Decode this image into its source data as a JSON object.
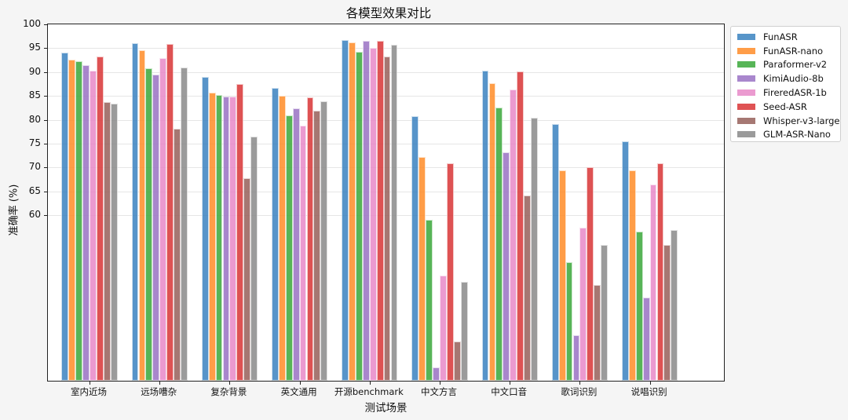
{
  "chart_data": {
    "type": "bar",
    "title": "各模型效果对比",
    "xlabel": "测试场景",
    "ylabel": "准确率 (%)",
    "ylim": [
      25,
      100
    ],
    "yticks": [
      60,
      65,
      70,
      75,
      80,
      85,
      90,
      95,
      100
    ],
    "grid": true,
    "legend_position": "upper right (outside)",
    "categories": [
      "室内近场",
      "远场嘈杂",
      "复杂背景",
      "英文通用",
      "开源benchmark",
      "中文方言",
      "中文口音",
      "歌词识别",
      "说唱识别"
    ],
    "series": [
      {
        "name": "FunASR",
        "color": "#3a82c0",
        "values": [
          93.8,
          95.7,
          88.6,
          86.3,
          96.4,
          80.4,
          90.0,
          78.8,
          75.1
        ]
      },
      {
        "name": "FunASR-nano",
        "color": "#ff8c28",
        "values": [
          92.3,
          94.3,
          85.4,
          84.7,
          95.9,
          71.8,
          87.3,
          69.1,
          69.1
        ]
      },
      {
        "name": "Paraformer-v2",
        "color": "#3aa83a",
        "values": [
          91.9,
          90.5,
          84.9,
          80.6,
          93.9,
          58.8,
          82.2,
          49.8,
          56.2
        ]
      },
      {
        "name": "KimiAudio-8b",
        "color": "#9a72c4",
        "values": [
          91.1,
          89.1,
          84.5,
          82.0,
          96.2,
          27.8,
          72.8,
          34.6,
          42.4
        ]
      },
      {
        "name": "FireredASR-1b",
        "color": "#e889c8",
        "values": [
          90.0,
          92.6,
          84.5,
          78.4,
          94.8,
          47.1,
          86.0,
          57.0,
          66.1
        ]
      },
      {
        "name": "Seed-ASR",
        "color": "#d93536",
        "values": [
          92.9,
          95.5,
          87.2,
          84.4,
          96.2,
          70.5,
          89.8,
          69.7,
          70.5
        ]
      },
      {
        "name": "Whisper-v3-large",
        "color": "#97605a",
        "values": [
          83.4,
          77.8,
          67.5,
          81.5,
          93.0,
          33.3,
          63.9,
          45.1,
          53.4
        ]
      },
      {
        "name": "GLM-ASR-Nano",
        "color": "#8a8a8a",
        "values": [
          83.0,
          90.6,
          76.1,
          83.6,
          95.4,
          45.7,
          80.1,
          53.4,
          56.6
        ]
      }
    ]
  }
}
